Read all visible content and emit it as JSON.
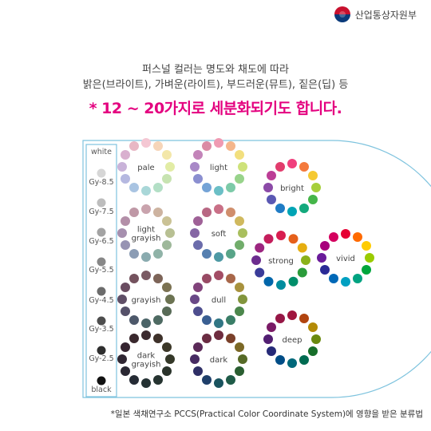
{
  "header": {
    "ministry_name": "산업통상자원부"
  },
  "intro": {
    "line1": "퍼스널 컬러는 명도와 채도에 따라",
    "line2": "밝은(브라이트), 가벼운(라이트), 부드러운(뮤트), 짙은(딥) 등",
    "highlight": "* 12 ~ 20가지로 세분화되기도 합니다."
  },
  "gray_scale": {
    "items": [
      {
        "label": "white",
        "color": "#ffffff"
      },
      {
        "label": "Gy-8.5",
        "color": "#d6d6d6"
      },
      {
        "label": "Gy-7.5",
        "color": "#bdbdbd"
      },
      {
        "label": "Gy-6.5",
        "color": "#a3a3a3"
      },
      {
        "label": "Gy-5.5",
        "color": "#878787"
      },
      {
        "label": "Gy-4.5",
        "color": "#6c6c6c"
      },
      {
        "label": "Gy-3.5",
        "color": "#4d4d4d"
      },
      {
        "label": "Gy-2.5",
        "color": "#2e2e2e"
      },
      {
        "label": "black",
        "color": "#111111"
      }
    ]
  },
  "tones": [
    {
      "label": "pale",
      "colors": [
        "#f4c7d3",
        "#f6d5b9",
        "#f3e7a9",
        "#e2eca5",
        "#c7e3b1",
        "#b3dfc6",
        "#a9d7d8",
        "#a9c4e2",
        "#b5b8e0",
        "#c9b3d9",
        "#d9b0cf",
        "#e8b7c4"
      ]
    },
    {
      "label": "light",
      "colors": [
        "#ef9ab2",
        "#f5b68c",
        "#f2df7e",
        "#cee27a",
        "#98d38b",
        "#7ccaa8",
        "#6bbfc6",
        "#74a3d6",
        "#8b8fd0",
        "#a889c7",
        "#c384b9",
        "#db8ba4"
      ]
    },
    {
      "label": "light grayish",
      "colors": [
        "#c9a3ad",
        "#cdb3a0",
        "#cac295",
        "#b8c093",
        "#9eb89a",
        "#90b3a8",
        "#8aabaf",
        "#8b9cb4",
        "#9793b3",
        "#a68fae",
        "#b38fa8",
        "#bf98a6"
      ]
    },
    {
      "label": "soft",
      "colors": [
        "#c97087",
        "#d08e6c",
        "#d0b95e",
        "#a9bf5e",
        "#71ad6b",
        "#58a488",
        "#4d99a4",
        "#5680b0",
        "#6b6cab",
        "#8566a4",
        "#9f6197",
        "#b86783"
      ]
    },
    {
      "label": "grayish",
      "colors": [
        "#7a5a63",
        "#7d6458",
        "#7b7252",
        "#6c7352",
        "#586b57",
        "#4e6a62",
        "#4b6468",
        "#4d586a",
        "#555169",
        "#5f4e66",
        "#6a4d61",
        "#74525e"
      ]
    },
    {
      "label": "dull",
      "colors": [
        "#a34d65",
        "#a8674a",
        "#a8923e",
        "#82953d",
        "#4c874c",
        "#3a7e67",
        "#317684",
        "#3a5f92",
        "#4e4e8e",
        "#694887",
        "#81437b",
        "#984a64"
      ]
    },
    {
      "label": "dark grayish",
      "colors": [
        "#3b2a2f",
        "#3e312a",
        "#3c3828",
        "#343828",
        "#2a332b",
        "#253330",
        "#243133",
        "#252b34",
        "#2a2833",
        "#2f2632",
        "#352530",
        "#39282d"
      ]
    },
    {
      "label": "dark",
      "colors": [
        "#6e2c3f",
        "#7a402a",
        "#7b6826",
        "#566a27",
        "#2a5e31",
        "#1f5b48",
        "#19535e",
        "#1f3f6a",
        "#2f2f66",
        "#472b63",
        "#5b2a58",
        "#6a2c42"
      ]
    },
    {
      "label": "bright",
      "colors": [
        "#f0407d",
        "#f47a3c",
        "#f5c932",
        "#a6cf3b",
        "#45b549",
        "#13a97c",
        "#00a4b5",
        "#1f7cc5",
        "#5a58b3",
        "#8b4aa7",
        "#bc3d96",
        "#e23c6d"
      ]
    },
    {
      "label": "strong",
      "colors": [
        "#d81e50",
        "#e5601b",
        "#e6ae10",
        "#8bb21a",
        "#2a9b3a",
        "#008e6a",
        "#008c9e",
        "#0066aa",
        "#3a3c99",
        "#6c2d8f",
        "#9c2680",
        "#c41e5c"
      ]
    },
    {
      "label": "vivid",
      "colors": [
        "#e60033",
        "#ff6a00",
        "#ffcc00",
        "#9acb00",
        "#00a63c",
        "#00a381",
        "#00a0c1",
        "#0068b7",
        "#2a2a96",
        "#6a1b9a",
        "#a7007c",
        "#d4005f"
      ]
    },
    {
      "label": "deep",
      "colors": [
        "#a0163f",
        "#b1440f",
        "#b38a05",
        "#6a8a0f",
        "#176e2a",
        "#006b51",
        "#00687a",
        "#004d86",
        "#262a78",
        "#521f72",
        "#7a1a66",
        "#961746"
      ]
    }
  ],
  "footnote": "*일본 색채연구소 PCCS(Practical Color Coordinate System)에 영향을 받은 분류법"
}
